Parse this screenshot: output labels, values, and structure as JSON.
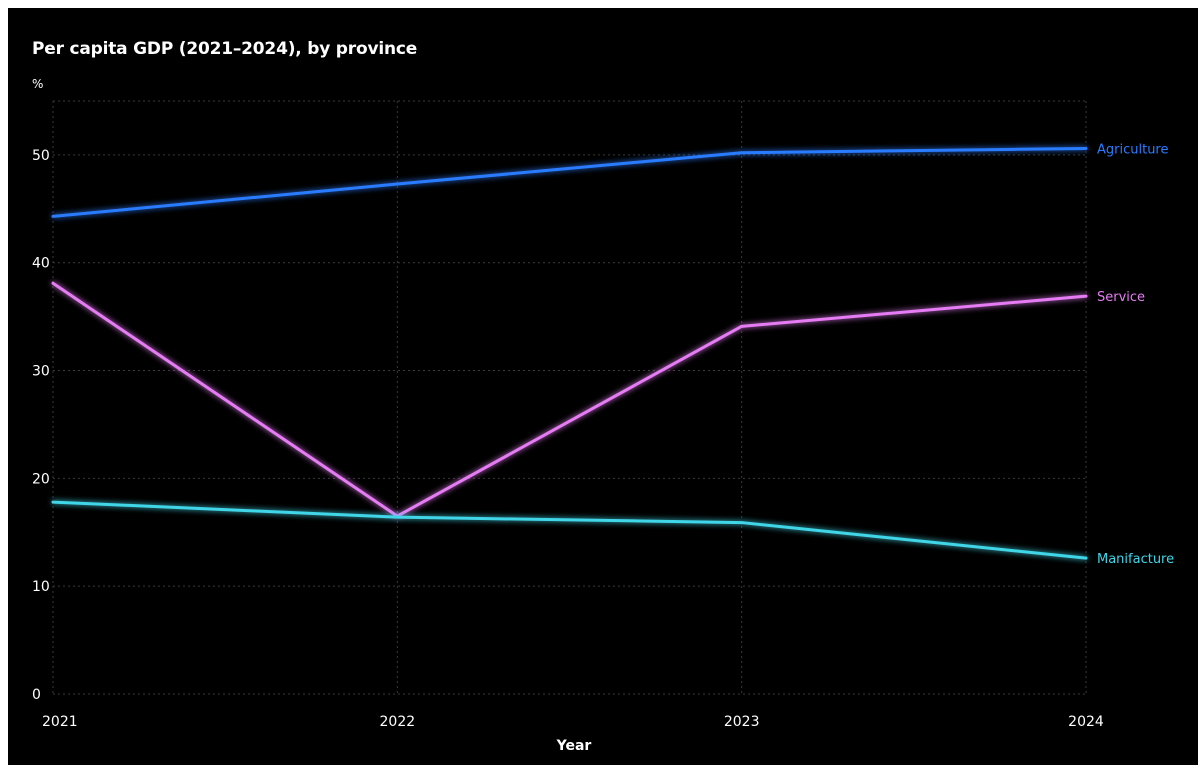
{
  "chart_data": {
    "type": "line",
    "title": "Per capita GDP (2021–2024), by province",
    "ylabel": "%",
    "xlabel": "Year",
    "x": [
      2021,
      2022,
      2023,
      2024
    ],
    "x_tick_labels": [
      "2021",
      "2022",
      "2023",
      "2024"
    ],
    "y_ticks": [
      0,
      10,
      20,
      30,
      40,
      50
    ],
    "ylim": [
      0,
      55
    ],
    "grid": true,
    "legend": "direct labels at line ends",
    "series": [
      {
        "name": "Agriculture",
        "values": [
          44.3,
          47.3,
          50.2,
          50.6
        ],
        "color": "#2b7cff"
      },
      {
        "name": "Service",
        "values": [
          38.1,
          16.5,
          34.1,
          36.9
        ],
        "color": "#e67cf4"
      },
      {
        "name": "Manifacture",
        "values": [
          17.8,
          16.4,
          15.9,
          12.6
        ],
        "color": "#3fd6e8"
      }
    ]
  }
}
